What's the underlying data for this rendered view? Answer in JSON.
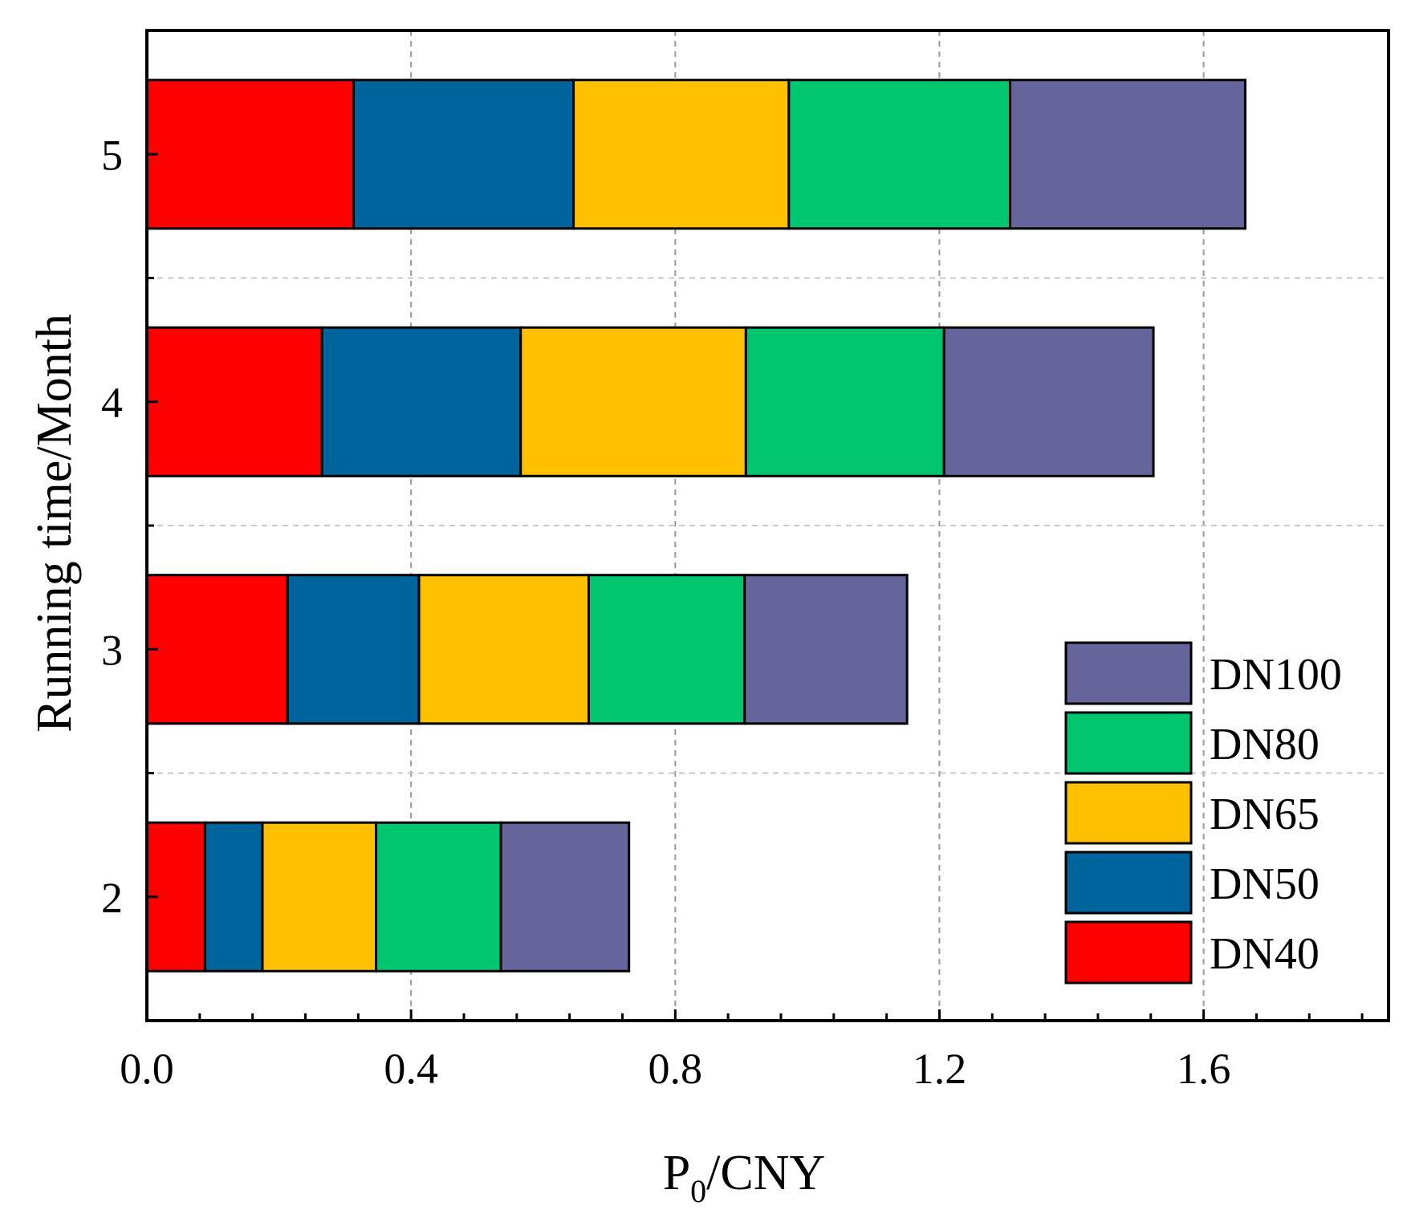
{
  "chart_data": {
    "type": "bar",
    "orientation": "horizontal",
    "stacked": true,
    "title": "",
    "xlabel": "P",
    "xlabel_subscript": "0",
    "xlabel_suffix": "/CNY",
    "ylabel": "Running time/Month",
    "xlim": [
      0,
      1.88
    ],
    "xticks": [
      0.0,
      0.4,
      0.8,
      1.2,
      1.6
    ],
    "xtick_labels": [
      "0.0",
      "0.4",
      "0.8",
      "1.2",
      "1.6"
    ],
    "xminor_step": 0.08,
    "categories": [
      "2",
      "3",
      "4",
      "5"
    ],
    "grid": true,
    "legend_position": "bottom-right",
    "series": [
      {
        "name": "DN40",
        "color": "#ff0000",
        "values": [
          0.088,
          0.213,
          0.265,
          0.313
        ]
      },
      {
        "name": "DN50",
        "color": "#00649c",
        "values": [
          0.087,
          0.199,
          0.301,
          0.333
        ]
      },
      {
        "name": "DN65",
        "color": "#ffc000",
        "values": [
          0.172,
          0.257,
          0.341,
          0.326
        ]
      },
      {
        "name": "DN80",
        "color": "#00c66f",
        "values": [
          0.189,
          0.236,
          0.3,
          0.335
        ]
      },
      {
        "name": "DN100",
        "color": "#65659c",
        "values": [
          0.194,
          0.246,
          0.317,
          0.356
        ]
      }
    ],
    "legend_order": [
      "DN100",
      "DN80",
      "DN65",
      "DN50",
      "DN40"
    ]
  }
}
